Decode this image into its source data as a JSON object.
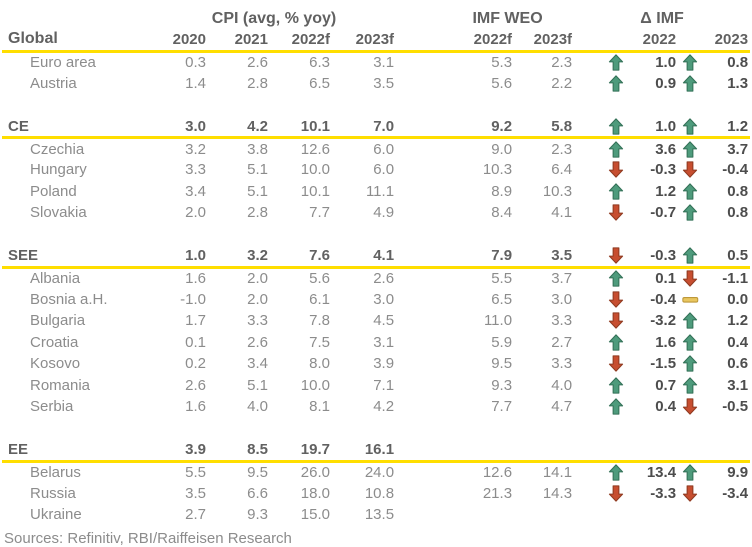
{
  "colors": {
    "accent_yellow": "#FFDE00",
    "arrow_up_green": "#4E9B7C",
    "arrow_up_border": "#337157",
    "arrow_down_red": "#C74E30",
    "arrow_down_border": "#8F3A20",
    "flat_gold": "#E9C65F",
    "flat_border": "#BD983A",
    "text_gray": "#8C8C8C",
    "text_dark": "#616161",
    "delta_text": "#4D4D4D"
  },
  "chart_data": {
    "type": "table",
    "group_headers": [
      "CPI (avg, % yoy)",
      "IMF WEO",
      "Δ IMF"
    ],
    "corner_label": "Global",
    "cpi_year_headers": [
      "2020",
      "2021",
      "2022f",
      "2023f"
    ],
    "imf_year_headers": [
      "2022f",
      "2023f"
    ],
    "delta_year_headers": [
      "2022",
      "2023"
    ],
    "rows": [
      {
        "type": "data",
        "label": "Euro area",
        "cpi": [
          "0.3",
          "2.6",
          "6.3",
          "3.1"
        ],
        "imf": [
          "5.3",
          "2.3"
        ],
        "delta": [
          {
            "dir": "up",
            "value": "1.0"
          },
          {
            "dir": "up",
            "value": "0.8"
          }
        ]
      },
      {
        "type": "data",
        "label": "Austria",
        "cpi": [
          "1.4",
          "2.8",
          "6.5",
          "3.5"
        ],
        "imf": [
          "5.6",
          "2.2"
        ],
        "delta": [
          {
            "dir": "up",
            "value": "0.9"
          },
          {
            "dir": "up",
            "value": "1.3"
          }
        ]
      },
      {
        "type": "spacer"
      },
      {
        "type": "section",
        "label": "CE",
        "cpi": [
          "3.0",
          "4.2",
          "10.1",
          "7.0"
        ],
        "imf": [
          "9.2",
          "5.8"
        ],
        "delta": [
          {
            "dir": "up",
            "value": "1.0"
          },
          {
            "dir": "up",
            "value": "1.2"
          }
        ]
      },
      {
        "type": "data",
        "label": "Czechia",
        "cpi": [
          "3.2",
          "3.8",
          "12.6",
          "6.0"
        ],
        "imf": [
          "9.0",
          "2.3"
        ],
        "delta": [
          {
            "dir": "up",
            "value": "3.6"
          },
          {
            "dir": "up",
            "value": "3.7"
          }
        ]
      },
      {
        "type": "data",
        "label": "Hungary",
        "cpi": [
          "3.3",
          "5.1",
          "10.0",
          "6.0"
        ],
        "imf": [
          "10.3",
          "6.4"
        ],
        "delta": [
          {
            "dir": "down",
            "value": "-0.3"
          },
          {
            "dir": "down",
            "value": "-0.4"
          }
        ]
      },
      {
        "type": "data",
        "label": "Poland",
        "cpi": [
          "3.4",
          "5.1",
          "10.1",
          "11.1"
        ],
        "imf": [
          "8.9",
          "10.3"
        ],
        "delta": [
          {
            "dir": "up",
            "value": "1.2"
          },
          {
            "dir": "up",
            "value": "0.8"
          }
        ]
      },
      {
        "type": "data",
        "label": "Slovakia",
        "cpi": [
          "2.0",
          "2.8",
          "7.7",
          "4.9"
        ],
        "imf": [
          "8.4",
          "4.1"
        ],
        "delta": [
          {
            "dir": "down",
            "value": "-0.7"
          },
          {
            "dir": "up",
            "value": "0.8"
          }
        ]
      },
      {
        "type": "spacer"
      },
      {
        "type": "section",
        "label": "SEE",
        "cpi": [
          "1.0",
          "3.2",
          "7.6",
          "4.1"
        ],
        "imf": [
          "7.9",
          "3.5"
        ],
        "delta": [
          {
            "dir": "down",
            "value": "-0.3"
          },
          {
            "dir": "up",
            "value": "0.5"
          }
        ]
      },
      {
        "type": "data",
        "label": "Albania",
        "cpi": [
          "1.6",
          "2.0",
          "5.6",
          "2.6"
        ],
        "imf": [
          "5.5",
          "3.7"
        ],
        "delta": [
          {
            "dir": "up",
            "value": "0.1"
          },
          {
            "dir": "down",
            "value": "-1.1"
          }
        ]
      },
      {
        "type": "data",
        "label": "Bosnia a.H.",
        "cpi": [
          "-1.0",
          "2.0",
          "6.1",
          "3.0"
        ],
        "imf": [
          "6.5",
          "3.0"
        ],
        "delta": [
          {
            "dir": "down",
            "value": "-0.4"
          },
          {
            "dir": "flat",
            "value": "0.0"
          }
        ]
      },
      {
        "type": "data",
        "label": "Bulgaria",
        "cpi": [
          "1.7",
          "3.3",
          "7.8",
          "4.5"
        ],
        "imf": [
          "11.0",
          "3.3"
        ],
        "delta": [
          {
            "dir": "down",
            "value": "-3.2"
          },
          {
            "dir": "up",
            "value": "1.2"
          }
        ]
      },
      {
        "type": "data",
        "label": "Croatia",
        "cpi": [
          "0.1",
          "2.6",
          "7.5",
          "3.1"
        ],
        "imf": [
          "5.9",
          "2.7"
        ],
        "delta": [
          {
            "dir": "up",
            "value": "1.6"
          },
          {
            "dir": "up",
            "value": "0.4"
          }
        ]
      },
      {
        "type": "data",
        "label": "Kosovo",
        "cpi": [
          "0.2",
          "3.4",
          "8.0",
          "3.9"
        ],
        "imf": [
          "9.5",
          "3.3"
        ],
        "delta": [
          {
            "dir": "down",
            "value": "-1.5"
          },
          {
            "dir": "up",
            "value": "0.6"
          }
        ]
      },
      {
        "type": "data",
        "label": "Romania",
        "cpi": [
          "2.6",
          "5.1",
          "10.0",
          "7.1"
        ],
        "imf": [
          "9.3",
          "4.0"
        ],
        "delta": [
          {
            "dir": "up",
            "value": "0.7"
          },
          {
            "dir": "up",
            "value": "3.1"
          }
        ]
      },
      {
        "type": "data",
        "label": "Serbia",
        "cpi": [
          "1.6",
          "4.0",
          "8.1",
          "4.2"
        ],
        "imf": [
          "7.7",
          "4.7"
        ],
        "delta": [
          {
            "dir": "up",
            "value": "0.4"
          },
          {
            "dir": "down",
            "value": "-0.5"
          }
        ]
      },
      {
        "type": "spacer"
      },
      {
        "type": "section",
        "label": "EE",
        "cpi": [
          "3.9",
          "8.5",
          "19.7",
          "16.1"
        ],
        "imf": [
          "",
          ""
        ],
        "delta": [
          null,
          null
        ]
      },
      {
        "type": "data",
        "label": "Belarus",
        "cpi": [
          "5.5",
          "9.5",
          "26.0",
          "24.0"
        ],
        "imf": [
          "12.6",
          "14.1"
        ],
        "delta": [
          {
            "dir": "up",
            "value": "13.4"
          },
          {
            "dir": "up",
            "value": "9.9"
          }
        ]
      },
      {
        "type": "data",
        "label": "Russia",
        "cpi": [
          "3.5",
          "6.6",
          "18.0",
          "10.8"
        ],
        "imf": [
          "21.3",
          "14.3"
        ],
        "delta": [
          {
            "dir": "down",
            "value": "-3.3"
          },
          {
            "dir": "down",
            "value": "-3.4"
          }
        ]
      },
      {
        "type": "data",
        "label": "Ukraine",
        "cpi": [
          "2.7",
          "9.3",
          "15.0",
          "13.5"
        ],
        "imf": [
          "",
          ""
        ],
        "delta": [
          null,
          null
        ]
      }
    ]
  },
  "footer": {
    "sources": "Sources: Refinitiv, RBI/Raiffeisen Research"
  }
}
